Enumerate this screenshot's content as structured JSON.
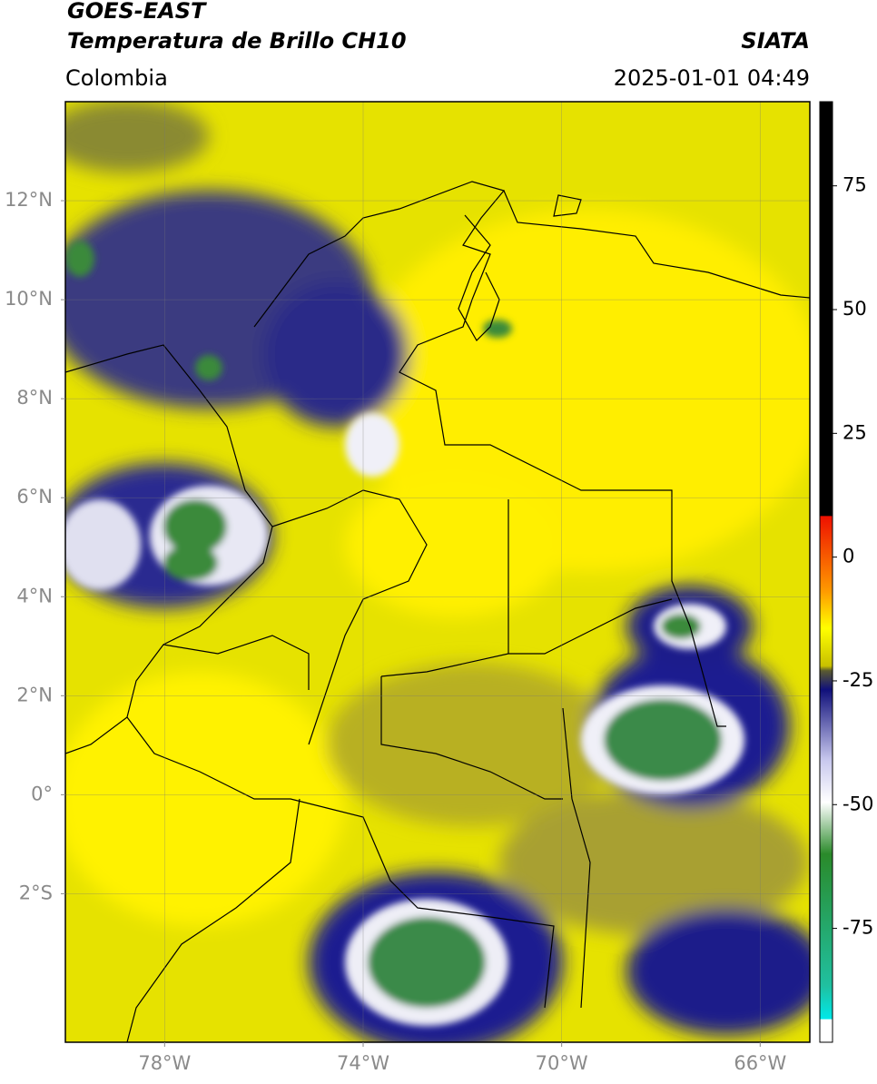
{
  "header": {
    "title": "GOES-EAST",
    "subtitle": "Temperatura de Brillo CH10",
    "region": "Colombia",
    "source": "SIATA",
    "datetime": "2025-01-01 04:49"
  },
  "map": {
    "xlim": [
      -80,
      -65
    ],
    "ylim": [
      -5,
      14
    ],
    "xticks": [
      {
        "value": -78,
        "label": "78°W"
      },
      {
        "value": -74,
        "label": "74°W"
      },
      {
        "value": -70,
        "label": "70°W"
      },
      {
        "value": -66,
        "label": "66°W"
      }
    ],
    "yticks": [
      {
        "value": 12,
        "label": "12°N"
      },
      {
        "value": 10,
        "label": "10°N"
      },
      {
        "value": 8,
        "label": "8°N"
      },
      {
        "value": 6,
        "label": "6°N"
      },
      {
        "value": 4,
        "label": "4°N"
      },
      {
        "value": 2,
        "label": "2°N"
      },
      {
        "value": 0,
        "label": "0°"
      },
      {
        "value": -2,
        "label": "2°S"
      }
    ],
    "grid": true
  },
  "colorbar": {
    "lim": [
      -98,
      92
    ],
    "ticks": [
      75,
      50,
      25,
      0,
      -25,
      -50,
      -75
    ]
  }
}
